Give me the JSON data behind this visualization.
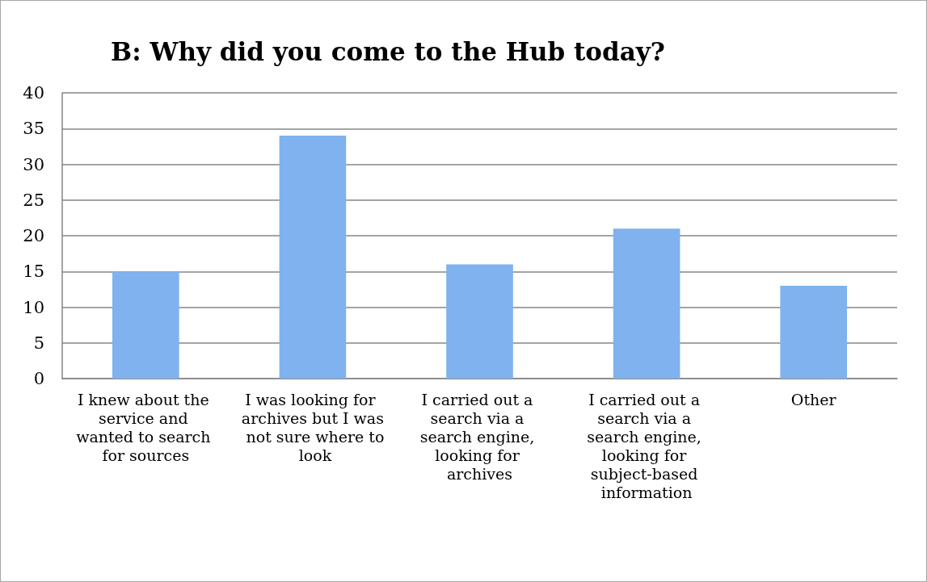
{
  "chart_data": {
    "type": "bar",
    "title": "B: Why did you come to the Hub today?",
    "categories": [
      "I knew about the service and wanted to search for sources",
      "I was looking for archives but I was not sure where to look",
      "I carried out a search via a search engine, looking for archives",
      "I carried out a search via a search engine, looking for subject-based information",
      "Other"
    ],
    "values": [
      15,
      34,
      16,
      21,
      13
    ],
    "color": "#7fb2ee",
    "ylim": [
      0,
      40
    ],
    "yticks": [
      0,
      5,
      10,
      15,
      20,
      25,
      30,
      35,
      40
    ],
    "grid": "y"
  }
}
